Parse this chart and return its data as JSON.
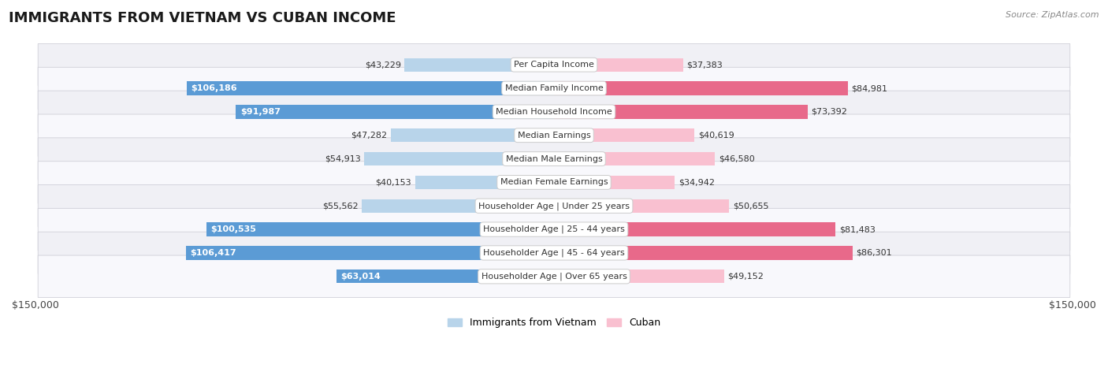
{
  "title": "IMMIGRANTS FROM VIETNAM VS CUBAN INCOME",
  "source": "Source: ZipAtlas.com",
  "categories": [
    "Per Capita Income",
    "Median Family Income",
    "Median Household Income",
    "Median Earnings",
    "Median Male Earnings",
    "Median Female Earnings",
    "Householder Age | Under 25 years",
    "Householder Age | 25 - 44 years",
    "Householder Age | 45 - 64 years",
    "Householder Age | Over 65 years"
  ],
  "vietnam_values": [
    43229,
    106186,
    91987,
    47282,
    54913,
    40153,
    55562,
    100535,
    106417,
    63014
  ],
  "cuban_values": [
    37383,
    84981,
    73392,
    40619,
    46580,
    34942,
    50655,
    81483,
    86301,
    49152
  ],
  "vietnam_labels": [
    "$43,229",
    "$106,186",
    "$91,987",
    "$47,282",
    "$54,913",
    "$40,153",
    "$55,562",
    "$100,535",
    "$106,417",
    "$63,014"
  ],
  "cuban_labels": [
    "$37,383",
    "$84,981",
    "$73,392",
    "$40,619",
    "$46,580",
    "$34,942",
    "$50,655",
    "$81,483",
    "$86,301",
    "$49,152"
  ],
  "vietnam_color_light": "#b8d4ea",
  "vietnam_color_dark": "#5b9bd5",
  "cuban_color_light": "#f9c0d0",
  "cuban_color_dark": "#e8698a",
  "max_value": 150000,
  "large_threshold": 60000,
  "legend_vietnam": "Immigrants from Vietnam",
  "legend_cuban": "Cuban",
  "ylabel_left": "$150,000",
  "ylabel_right": "$150,000",
  "row_colors": [
    "#f0f0f5",
    "#f8f8fc"
  ],
  "title_fontsize": 13,
  "label_fontsize": 8,
  "cat_fontsize": 8
}
